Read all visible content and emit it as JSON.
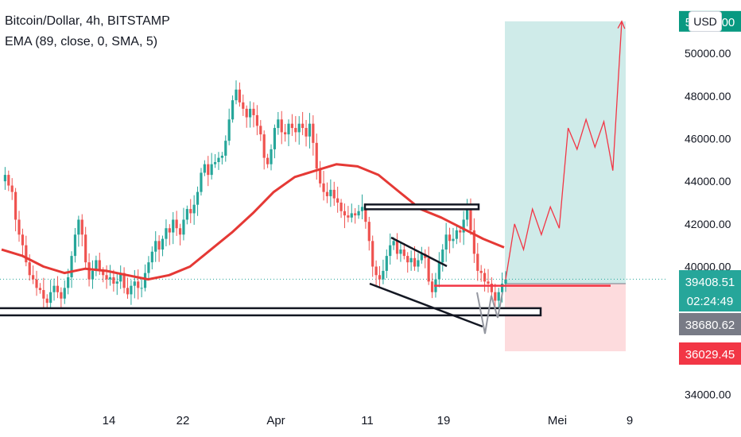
{
  "legend": {
    "symbol": "Bitcoin/Dollar, 4h, BITSTAMP",
    "indicator": "EMA (89, close, 0, SMA, 5)"
  },
  "currency_button": "USD",
  "chart_data": {
    "type": "candlestick",
    "title": "Bitcoin/Dollar, 4h, BITSTAMP",
    "x_tick_labels": [
      "14",
      "22",
      "Apr",
      "11",
      "19",
      "Mei",
      "9"
    ],
    "y_tick_labels": [
      "34000.00",
      "40000.00",
      "42000.00",
      "44000.00",
      "46000.00",
      "48000.00",
      "50000.00"
    ],
    "ylim": [
      33500,
      52500
    ],
    "price_markers": [
      {
        "label": "39408.51",
        "value": 39408.51,
        "color": "#26a69a"
      },
      {
        "label": "02:24:49",
        "value": 38900,
        "color": "#26a69a"
      },
      {
        "label": "38680.62",
        "value": 38680.62,
        "color": "#787b86"
      },
      {
        "label": "36029.45",
        "value": 36029.45,
        "color": "#f23645"
      }
    ],
    "target_label": "51500.00",
    "price_path": [
      44000,
      44300,
      43800,
      43500,
      42200,
      41500,
      41000,
      40200,
      39600,
      39400,
      39000,
      38900,
      38500,
      38300,
      38800,
      39100,
      38800,
      38500,
      39000,
      39500,
      40500,
      41500,
      42200,
      41500,
      40200,
      39400,
      39800,
      40300,
      39800,
      39600,
      39400,
      39500,
      39200,
      39300,
      39700,
      39000,
      38700,
      39100,
      39300,
      39000,
      39000,
      39700,
      40200,
      40700,
      41200,
      40800,
      41300,
      41800,
      41600,
      42200,
      41800,
      41500,
      42200,
      42700,
      42500,
      42900,
      43500,
      44400,
      44800,
      44300,
      44800,
      44900,
      45100,
      45200,
      45900,
      46900,
      47800,
      48300,
      47700,
      47400,
      47000,
      47400,
      47100,
      46600,
      46200,
      45100,
      44800,
      45500,
      46500,
      46900,
      46300,
      46200,
      46700,
      46500,
      46300,
      46700,
      46500,
      46100,
      46700,
      45800,
      44600,
      43900,
      43500,
      43300,
      43600,
      43200,
      43000,
      42600,
      42400,
      42300,
      42500,
      42400,
      42600,
      42800,
      42100,
      41200,
      40000,
      39600,
      39400,
      39800,
      40500,
      41000,
      41200,
      40600,
      40800,
      40500,
      40200,
      40400,
      40000,
      40300,
      40600,
      40400,
      39300,
      38800,
      39400,
      40200,
      40800,
      41500,
      41200,
      41300,
      41700,
      41600,
      42200,
      42900,
      41700,
      40600,
      39800,
      39700,
      39300,
      39200,
      38800,
      38400,
      38800,
      39200,
      39400
    ],
    "ema_series": {
      "name": "EMA (89, close, 0, SMA, 5)",
      "color": "#e53935",
      "values": [
        40800,
        40500,
        40000,
        39700,
        39900,
        39800,
        39600,
        39400,
        39600,
        40000,
        40800,
        41600,
        42500,
        43500,
        44200,
        44500,
        44800,
        44700,
        44300,
        43500,
        42700,
        42300,
        41800,
        41300,
        40900
      ]
    },
    "projection": {
      "color": "#f23645",
      "values": [
        39400,
        42000,
        40800,
        42700,
        41500,
        42800,
        41800,
        46500,
        45500,
        46900,
        45600,
        46800,
        44500,
        51500
      ]
    },
    "long_position": {
      "entry": 39200,
      "target": 51500,
      "stop": 36029.45,
      "profit_color": "#26a69a",
      "loss_color": "#f23645"
    },
    "horizontal_levels": [
      {
        "name": "support-zone",
        "value": 37900
      },
      {
        "name": "resistance-zone",
        "value": 42800
      },
      {
        "name": "neckline",
        "value": 39100
      }
    ]
  }
}
